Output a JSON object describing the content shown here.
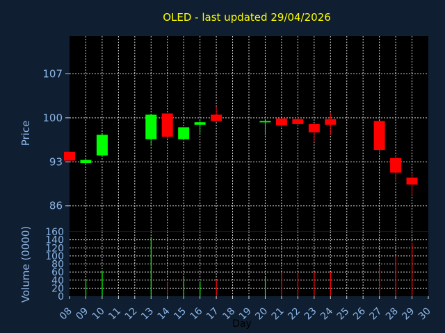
{
  "title": "OLED - last updated 29/04/2026",
  "colors": {
    "background": "#0f1e30",
    "plot_background": "#000000",
    "grid": "#d8d8d8",
    "up": "#00ff00",
    "down": "#ff0000",
    "title": "#ffff00",
    "labels": "#8db7e8"
  },
  "chart_data": [
    {
      "type": "candlestick",
      "ylabel": "Price",
      "ylim": [
        82,
        113
      ],
      "yticks": [
        "107",
        "100",
        "93",
        "86"
      ],
      "ytick_values": [
        107,
        100,
        93,
        86
      ],
      "x_categories": [
        "08",
        "09",
        "10",
        "11",
        "12",
        "13",
        "14",
        "15",
        "16",
        "17",
        "18",
        "19",
        "20",
        "21",
        "22",
        "23",
        "24",
        "25",
        "26",
        "27",
        "28",
        "29",
        "30"
      ],
      "candles": [
        {
          "day": "08",
          "open": 94.6,
          "close": 93.2,
          "high": 94.6,
          "low": 93.2
        },
        {
          "day": "09",
          "open": 92.8,
          "close": 93.3,
          "high": 93.6,
          "low": 92.6
        },
        {
          "day": "10",
          "open": 94.0,
          "close": 97.3,
          "high": 97.5,
          "low": 93.8
        },
        {
          "day": "13",
          "open": 96.6,
          "close": 100.5,
          "high": 100.6,
          "low": 95.6
        },
        {
          "day": "14",
          "open": 100.7,
          "close": 97.0,
          "high": 100.7,
          "low": 96.6
        },
        {
          "day": "15",
          "open": 96.6,
          "close": 98.5,
          "high": 98.5,
          "low": 96.6
        },
        {
          "day": "16",
          "open": 98.9,
          "close": 99.3,
          "high": 99.5,
          "low": 97.6
        },
        {
          "day": "17",
          "open": 100.5,
          "close": 99.5,
          "high": 101.8,
          "low": 99.3
        },
        {
          "day": "20",
          "open": 99.3,
          "close": 99.5,
          "high": 99.5,
          "low": 97.2
        },
        {
          "day": "21",
          "open": 99.9,
          "close": 98.8,
          "high": 100.0,
          "low": 98.5
        },
        {
          "day": "22",
          "open": 99.8,
          "close": 99.0,
          "high": 100.3,
          "low": 98.7
        },
        {
          "day": "23",
          "open": 99.0,
          "close": 97.7,
          "high": 99.0,
          "low": 96.1
        },
        {
          "day": "24",
          "open": 99.8,
          "close": 98.9,
          "high": 100.8,
          "low": 97.3
        },
        {
          "day": "27",
          "open": 99.5,
          "close": 94.9,
          "high": 99.5,
          "low": 94.3
        },
        {
          "day": "28",
          "open": 93.6,
          "close": 91.3,
          "high": 94.0,
          "low": 89.8
        },
        {
          "day": "29",
          "open": 90.5,
          "close": 89.4,
          "high": 91.3,
          "low": 87.7
        }
      ]
    },
    {
      "type": "bar",
      "ylabel": "Volume (0000)",
      "xlabel": "Day",
      "ylim": [
        0,
        160
      ],
      "yticks": [
        "160",
        "140",
        "120",
        "100",
        "80",
        "60",
        "40",
        "20",
        "0"
      ],
      "ytick_values": [
        160,
        140,
        120,
        100,
        80,
        60,
        40,
        20,
        0
      ],
      "x_categories": [
        "08",
        "09",
        "10",
        "11",
        "12",
        "13",
        "14",
        "15",
        "16",
        "17",
        "18",
        "19",
        "20",
        "21",
        "22",
        "23",
        "24",
        "25",
        "26",
        "27",
        "28",
        "29",
        "30"
      ],
      "bars": [
        {
          "day": "09",
          "value": 40,
          "direction": "up"
        },
        {
          "day": "10",
          "value": 63,
          "direction": "up"
        },
        {
          "day": "13",
          "value": 145,
          "direction": "up"
        },
        {
          "day": "14",
          "value": 36,
          "direction": "down"
        },
        {
          "day": "15",
          "value": 46,
          "direction": "up"
        },
        {
          "day": "16",
          "value": 37,
          "direction": "up"
        },
        {
          "day": "17",
          "value": 40,
          "direction": "down"
        },
        {
          "day": "20",
          "value": 48,
          "direction": "up"
        },
        {
          "day": "21",
          "value": 60,
          "direction": "down"
        },
        {
          "day": "22",
          "value": 56,
          "direction": "down"
        },
        {
          "day": "23",
          "value": 60,
          "direction": "down"
        },
        {
          "day": "24",
          "value": 60,
          "direction": "down"
        },
        {
          "day": "27",
          "value": 72,
          "direction": "down"
        },
        {
          "day": "28",
          "value": 100,
          "direction": "down"
        },
        {
          "day": "29",
          "value": 133,
          "direction": "down"
        }
      ]
    }
  ]
}
